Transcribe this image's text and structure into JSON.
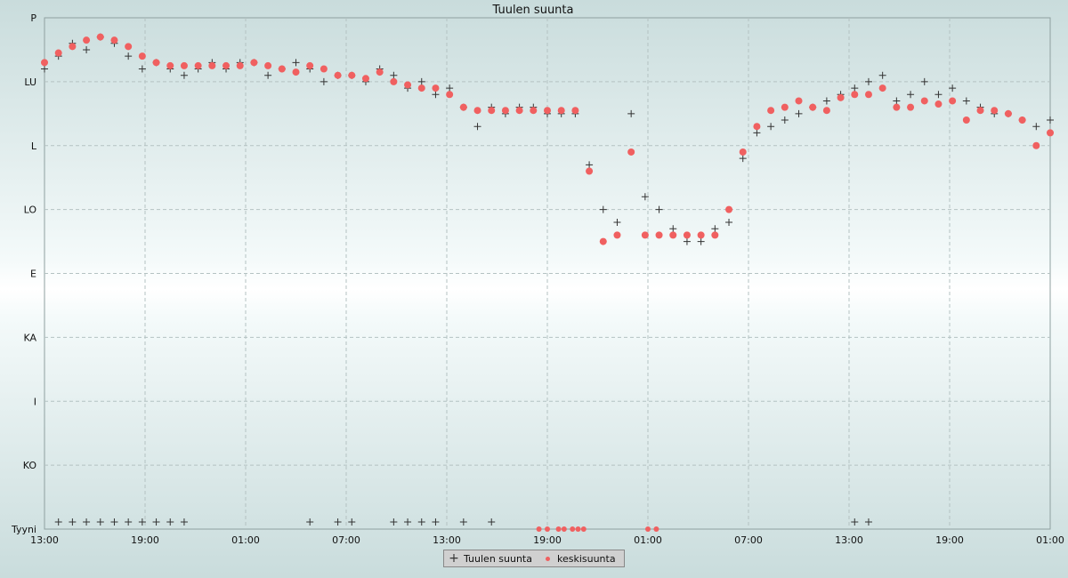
{
  "chart_data": {
    "type": "scatter",
    "title": "Tuulen suunta",
    "y_ticks": [
      "Tyyni",
      "KO",
      "I",
      "KA",
      "E",
      "LO",
      "L",
      "LU",
      "P"
    ],
    "y_range": [
      0,
      8
    ],
    "x_ticks": [
      "13:00",
      "19:00",
      "01:00",
      "07:00",
      "13:00",
      "19:00",
      "01:00",
      "07:00",
      "13:00",
      "19:00",
      "01:00"
    ],
    "x_range_hours": [
      0,
      36
    ],
    "grid": true,
    "legend_position": "bottom-center",
    "series": [
      {
        "name": "Tuulen suunta",
        "marker": "plus",
        "color": "#333333",
        "x": [
          0.0,
          0.5,
          1.0,
          1.5,
          2.0,
          2.5,
          3.0,
          3.5,
          4.0,
          4.5,
          5.0,
          5.5,
          6.0,
          6.5,
          7.0,
          7.5,
          8.0,
          8.5,
          9.0,
          9.5,
          10.0,
          10.5,
          11.0,
          11.5,
          12.0,
          12.5,
          13.0,
          13.5,
          14.0,
          14.5,
          15.0,
          15.5,
          16.0,
          16.5,
          17.0,
          17.5,
          18.0,
          18.5,
          19.0,
          19.5,
          20.0,
          20.5,
          21.0,
          21.5,
          22.0,
          22.5,
          23.0,
          23.5,
          24.0,
          24.5,
          25.0,
          25.5,
          26.0,
          26.5,
          27.0,
          27.5,
          28.0,
          28.5,
          29.0,
          29.5,
          30.0,
          30.5,
          31.0,
          31.5,
          32.0,
          32.5,
          33.0,
          33.5,
          34.0,
          34.5,
          35.0,
          35.5,
          36.0
        ],
        "y": [
          7.2,
          7.4,
          7.6,
          7.5,
          7.7,
          7.6,
          7.4,
          7.2,
          7.3,
          7.2,
          7.1,
          7.2,
          7.3,
          7.2,
          7.3,
          7.3,
          7.1,
          7.2,
          7.3,
          7.2,
          7.0,
          7.1,
          7.1,
          7.0,
          7.2,
          7.1,
          6.9,
          7.0,
          6.8,
          6.9,
          6.6,
          6.3,
          6.6,
          6.5,
          6.6,
          6.6,
          6.5,
          6.5,
          6.5,
          5.7,
          5.0,
          4.8,
          6.5,
          5.2,
          5.0,
          4.7,
          4.5,
          4.5,
          4.7,
          4.8,
          5.8,
          6.2,
          6.3,
          6.4,
          6.5,
          6.6,
          6.7,
          6.8,
          6.9,
          7.0,
          7.1,
          6.7,
          6.8,
          7.0,
          6.8,
          6.9,
          6.7,
          6.6,
          6.5,
          6.5,
          6.4,
          6.3,
          6.4
        ],
        "calm_x": [
          0.5,
          1.0,
          1.5,
          2.0,
          2.5,
          3.0,
          3.5,
          4.0,
          4.5,
          5.0,
          9.5,
          10.5,
          11.0,
          12.5,
          13.0,
          13.5,
          14.0,
          15.0,
          16.0,
          29.0,
          29.5
        ]
      },
      {
        "name": "keskisuunta",
        "marker": "dot",
        "color": "#f06060",
        "x": [
          0.0,
          0.5,
          1.0,
          1.5,
          2.0,
          2.5,
          3.0,
          3.5,
          4.0,
          4.5,
          5.0,
          5.5,
          6.0,
          6.5,
          7.0,
          7.5,
          8.0,
          8.5,
          9.0,
          9.5,
          10.0,
          10.5,
          11.0,
          11.5,
          12.0,
          12.5,
          13.0,
          13.5,
          14.0,
          14.5,
          15.0,
          15.5,
          16.0,
          16.5,
          17.0,
          17.5,
          18.0,
          18.5,
          19.0,
          19.5,
          20.0,
          20.5,
          21.0,
          21.5,
          22.0,
          22.5,
          23.0,
          23.5,
          24.0,
          24.5,
          25.0,
          25.5,
          26.0,
          26.5,
          27.0,
          27.5,
          28.0,
          28.5,
          29.0,
          29.5,
          30.0,
          30.5,
          31.0,
          31.5,
          32.0,
          32.5,
          33.0,
          33.5,
          34.0,
          34.5,
          35.0,
          35.5,
          36.0
        ],
        "y": [
          7.3,
          7.45,
          7.55,
          7.65,
          7.7,
          7.65,
          7.55,
          7.4,
          7.3,
          7.25,
          7.25,
          7.25,
          7.25,
          7.25,
          7.25,
          7.3,
          7.25,
          7.2,
          7.15,
          7.25,
          7.2,
          7.1,
          7.1,
          7.05,
          7.15,
          7.0,
          6.95,
          6.9,
          6.9,
          6.8,
          6.6,
          6.55,
          6.55,
          6.55,
          6.55,
          6.55,
          6.55,
          6.55,
          6.55,
          5.6,
          4.5,
          4.6,
          5.9,
          4.6,
          4.6,
          4.6,
          4.6,
          4.6,
          4.6,
          5.0,
          5.9,
          6.3,
          6.55,
          6.6,
          6.7,
          6.6,
          6.55,
          6.75,
          6.8,
          6.8,
          6.9,
          6.6,
          6.6,
          6.7,
          6.65,
          6.7,
          6.4,
          6.55,
          6.55,
          6.5,
          6.4,
          6.0,
          6.2
        ],
        "calm_x": [
          17.7,
          18.0,
          18.4,
          18.6,
          18.9,
          19.1,
          19.3,
          21.6,
          21.9
        ]
      }
    ]
  }
}
